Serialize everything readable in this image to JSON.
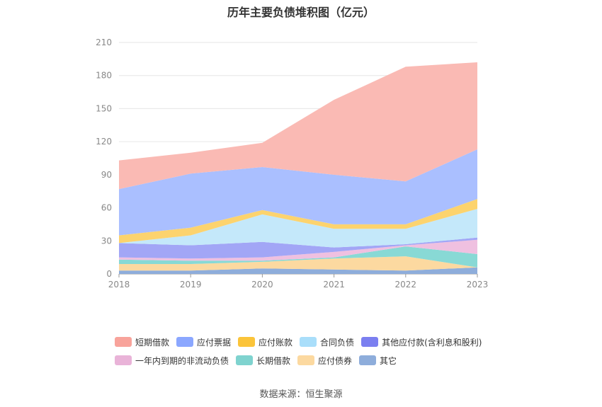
{
  "source_text": "数据来源：恒生聚源",
  "chart_data": {
    "type": "area",
    "stacked": true,
    "title": "历年主要负债堆积图（亿元）",
    "x": [
      "2018",
      "2019",
      "2020",
      "2021",
      "2022",
      "2023"
    ],
    "ylim": [
      0,
      210
    ],
    "yticks": [
      0,
      30,
      60,
      90,
      120,
      150,
      180,
      210
    ],
    "grid": true,
    "legend_position": "bottom",
    "series": [
      {
        "name": "其它",
        "color": "#8eaddb",
        "values": [
          3,
          3,
          5,
          4,
          3,
          6
        ]
      },
      {
        "name": "应付债券",
        "color": "#fcd9a0",
        "values": [
          6,
          6,
          6,
          10,
          13,
          0
        ]
      },
      {
        "name": "长期借款",
        "color": "#88d9d5",
        "values": [
          4,
          3,
          1,
          1,
          9,
          12
        ]
      },
      {
        "name": "一年内到期的非流动负债",
        "color": "#efc0e0",
        "values": [
          2,
          2,
          3,
          5,
          1,
          13
        ]
      },
      {
        "name": "其他应付款(含利息和股利)",
        "color": "#a2a6f6",
        "values": [
          13,
          12,
          14,
          4,
          1,
          2
        ]
      },
      {
        "name": "合同负债",
        "color": "#c4e8fa",
        "values": [
          0,
          9,
          25,
          17,
          14,
          26
        ]
      },
      {
        "name": "应付账款",
        "color": "#fcd36e",
        "values": [
          7,
          7,
          4,
          4,
          4,
          9
        ]
      },
      {
        "name": "应付票据",
        "color": "#aabfff",
        "values": [
          42,
          49,
          39,
          45,
          39,
          45
        ]
      },
      {
        "name": "短期借款",
        "color": "#fabab4",
        "values": [
          26,
          19,
          22,
          68,
          104,
          79
        ]
      }
    ],
    "legend_rows": [
      [
        {
          "name": "短期借款",
          "color": "#f8a39b"
        },
        {
          "name": "应付票据",
          "color": "#8ba7ff"
        },
        {
          "name": "应付账款",
          "color": "#fbc43a"
        },
        {
          "name": "合同负债",
          "color": "#a9defa"
        },
        {
          "name": "其他应付款(含利息和股利)",
          "color": "#7b7ff0"
        }
      ],
      [
        {
          "name": "一年内到期的非流动负债",
          "color": "#e9b3d8"
        },
        {
          "name": "长期借款",
          "color": "#7fd3cf"
        },
        {
          "name": "应付债券",
          "color": "#fcd9a0"
        },
        {
          "name": "其它",
          "color": "#8eaddb"
        }
      ]
    ]
  }
}
